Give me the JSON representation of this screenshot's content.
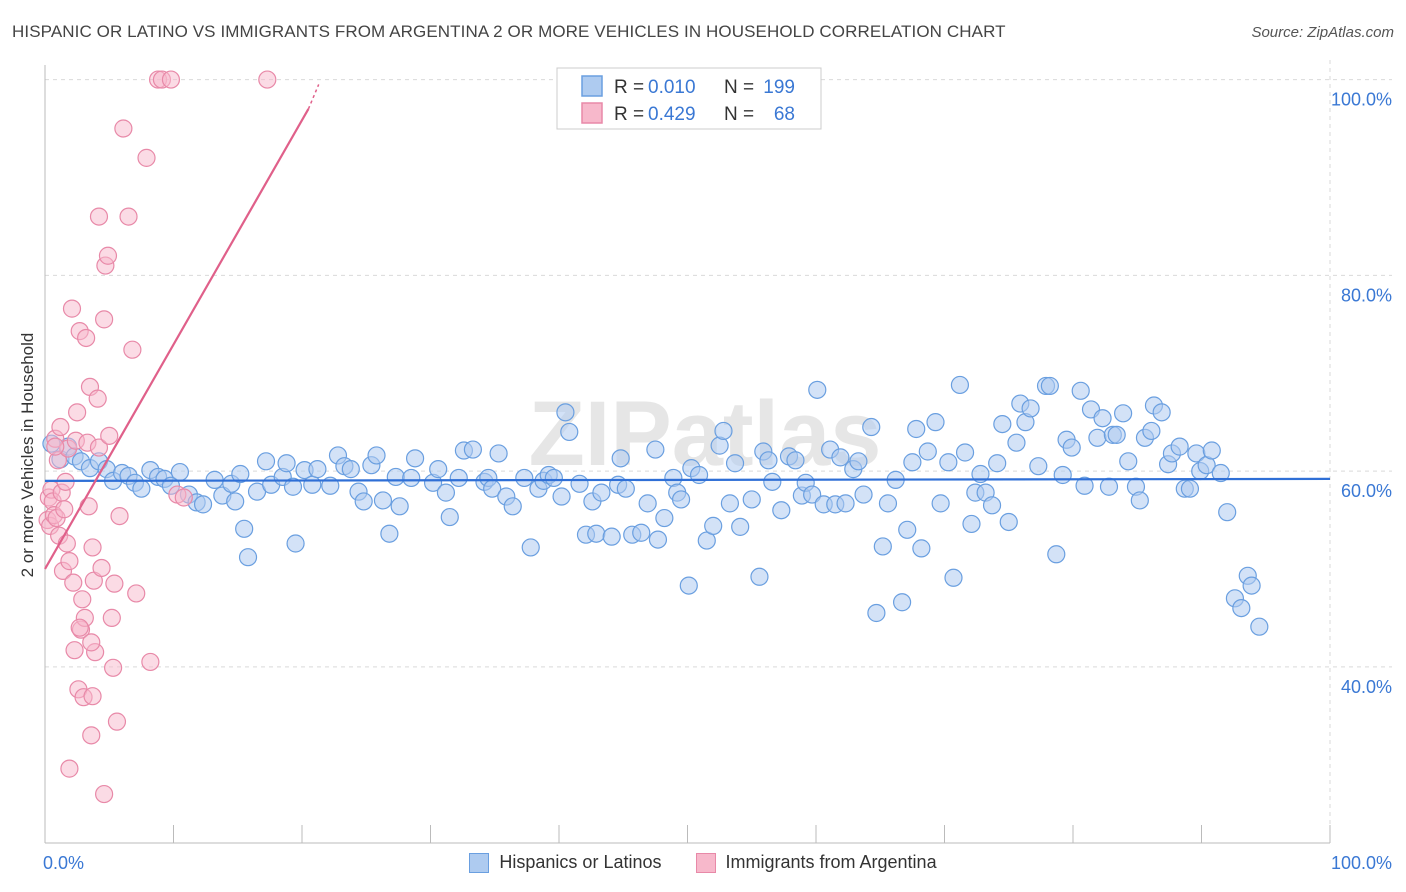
{
  "title": "HISPANIC OR LATINO VS IMMIGRANTS FROM ARGENTINA 2 OR MORE VEHICLES IN HOUSEHOLD CORRELATION CHART",
  "source": "Source: ZipAtlas.com",
  "watermark": "ZIPatlas",
  "legend_top": [
    {
      "r_label": "R =",
      "r_value": "0.010",
      "n_label": "N =",
      "n_value": "199"
    },
    {
      "r_label": "R =",
      "r_value": "0.429",
      "n_label": "N =",
      "n_value": "68"
    }
  ],
  "legend_bottom": [
    {
      "label": "Hispanics or Latinos"
    },
    {
      "label": "Immigrants from Argentina"
    }
  ],
  "colors": {
    "blue_fill": "#aecbf0",
    "blue_stroke": "#6a9fe0",
    "blue_line": "#2f6fd6",
    "pink_fill": "#f7b8cb",
    "pink_stroke": "#e889a8",
    "pink_line": "#e0608a",
    "axis_text": "#3a78d4",
    "grid": "#d9d9d9"
  },
  "chart_data": {
    "type": "scatter",
    "title": "HISPANIC OR LATINO VS IMMIGRANTS FROM ARGENTINA 2 OR MORE VEHICLES IN HOUSEHOLD CORRELATION CHART",
    "xlabel": "",
    "ylabel": "2 or more Vehicles in Household",
    "xlim": [
      0,
      100
    ],
    "ylim": [
      22,
      102
    ],
    "x_tick_labels": [
      "0.0%",
      "100.0%"
    ],
    "y_ticks": [
      40,
      60,
      80,
      100
    ],
    "y_tick_labels": [
      "40.0%",
      "60.0%",
      "80.0%",
      "100.0%"
    ],
    "grid": true,
    "series": [
      {
        "name": "Hispanics or Latinos",
        "R": 0.01,
        "N": 199,
        "trend": {
          "x": [
            0,
            100
          ],
          "y": [
            59.0,
            59.2
          ]
        },
        "points": [
          [
            0.5,
            62.8
          ],
          [
            1.2,
            61.2
          ],
          [
            1.8,
            62.5
          ],
          [
            2.3,
            61.5
          ],
          [
            2.8,
            61.0
          ],
          [
            3.5,
            60.3
          ],
          [
            4.2,
            61.0
          ],
          [
            4.8,
            60.2
          ],
          [
            5.3,
            59.0
          ],
          [
            6.0,
            59.8
          ],
          [
            6.5,
            59.5
          ],
          [
            7.0,
            58.8
          ],
          [
            7.5,
            58.2
          ],
          [
            8.2,
            60.1
          ],
          [
            8.8,
            59.4
          ],
          [
            9.3,
            59.2
          ],
          [
            9.8,
            58.5
          ],
          [
            10.5,
            59.9
          ],
          [
            11.2,
            57.6
          ],
          [
            11.8,
            56.8
          ],
          [
            12.3,
            56.6
          ],
          [
            13.2,
            59.1
          ],
          [
            13.8,
            57.5
          ],
          [
            14.5,
            58.7
          ],
          [
            14.8,
            56.9
          ],
          [
            15.2,
            59.7
          ],
          [
            15.5,
            54.1
          ],
          [
            15.8,
            51.2
          ],
          [
            16.5,
            57.9
          ],
          [
            17.2,
            61.0
          ],
          [
            17.6,
            58.6
          ],
          [
            18.5,
            59.4
          ],
          [
            18.8,
            60.8
          ],
          [
            19.3,
            58.4
          ],
          [
            19.5,
            52.6
          ],
          [
            20.2,
            60.1
          ],
          [
            20.8,
            58.6
          ],
          [
            21.2,
            60.2
          ],
          [
            22.2,
            58.5
          ],
          [
            22.8,
            61.6
          ],
          [
            23.3,
            60.5
          ],
          [
            23.8,
            60.2
          ],
          [
            24.4,
            57.9
          ],
          [
            24.8,
            56.9
          ],
          [
            25.4,
            60.6
          ],
          [
            25.8,
            61.6
          ],
          [
            26.3,
            57.0
          ],
          [
            26.8,
            53.6
          ],
          [
            27.3,
            59.4
          ],
          [
            27.6,
            56.4
          ],
          [
            28.5,
            59.3
          ],
          [
            28.8,
            61.3
          ],
          [
            30.2,
            58.8
          ],
          [
            30.6,
            60.2
          ],
          [
            31.2,
            57.8
          ],
          [
            31.5,
            55.3
          ],
          [
            32.2,
            59.3
          ],
          [
            32.6,
            62.1
          ],
          [
            33.3,
            62.2
          ],
          [
            34.2,
            58.9
          ],
          [
            34.5,
            59.3
          ],
          [
            34.8,
            58.2
          ],
          [
            35.3,
            61.8
          ],
          [
            35.9,
            57.4
          ],
          [
            36.4,
            56.4
          ],
          [
            37.3,
            59.3
          ],
          [
            37.8,
            52.2
          ],
          [
            38.4,
            58.2
          ],
          [
            38.8,
            59.0
          ],
          [
            39.2,
            59.6
          ],
          [
            39.6,
            59.3
          ],
          [
            40.2,
            57.4
          ],
          [
            40.5,
            66.0
          ],
          [
            40.8,
            64.0
          ],
          [
            41.6,
            58.7
          ],
          [
            42.1,
            53.5
          ],
          [
            42.6,
            56.9
          ],
          [
            42.9,
            53.6
          ],
          [
            43.3,
            57.8
          ],
          [
            44.1,
            53.3
          ],
          [
            44.6,
            58.6
          ],
          [
            44.8,
            61.3
          ],
          [
            45.2,
            58.2
          ],
          [
            45.7,
            53.5
          ],
          [
            46.4,
            53.7
          ],
          [
            46.9,
            56.7
          ],
          [
            47.5,
            62.2
          ],
          [
            47.7,
            53.0
          ],
          [
            48.2,
            55.2
          ],
          [
            48.9,
            59.3
          ],
          [
            49.2,
            57.8
          ],
          [
            49.5,
            57.1
          ],
          [
            50.1,
            48.3
          ],
          [
            50.3,
            60.3
          ],
          [
            50.9,
            59.6
          ],
          [
            51.5,
            52.9
          ],
          [
            52.0,
            54.4
          ],
          [
            52.5,
            62.6
          ],
          [
            52.8,
            64.1
          ],
          [
            53.3,
            56.7
          ],
          [
            53.7,
            60.8
          ],
          [
            54.1,
            54.3
          ],
          [
            55.0,
            57.1
          ],
          [
            55.6,
            49.2
          ],
          [
            55.9,
            62.0
          ],
          [
            56.3,
            61.1
          ],
          [
            56.6,
            58.9
          ],
          [
            57.3,
            56.0
          ],
          [
            57.9,
            61.5
          ],
          [
            58.4,
            61.1
          ],
          [
            58.9,
            57.5
          ],
          [
            59.2,
            58.8
          ],
          [
            59.7,
            57.6
          ],
          [
            60.1,
            68.3
          ],
          [
            60.6,
            56.6
          ],
          [
            61.1,
            62.2
          ],
          [
            61.5,
            56.6
          ],
          [
            61.9,
            61.4
          ],
          [
            62.3,
            56.7
          ],
          [
            62.9,
            60.2
          ],
          [
            63.3,
            61.0
          ],
          [
            63.7,
            57.6
          ],
          [
            64.3,
            64.5
          ],
          [
            64.7,
            45.5
          ],
          [
            65.2,
            52.3
          ],
          [
            65.6,
            56.7
          ],
          [
            66.2,
            59.1
          ],
          [
            66.7,
            46.6
          ],
          [
            67.1,
            54.0
          ],
          [
            67.5,
            60.9
          ],
          [
            67.8,
            64.3
          ],
          [
            68.2,
            52.1
          ],
          [
            68.7,
            62.0
          ],
          [
            69.3,
            65.0
          ],
          [
            69.7,
            56.7
          ],
          [
            70.3,
            60.9
          ],
          [
            70.7,
            49.1
          ],
          [
            71.2,
            68.8
          ],
          [
            71.6,
            61.9
          ],
          [
            72.1,
            54.6
          ],
          [
            72.4,
            57.8
          ],
          [
            72.8,
            59.7
          ],
          [
            73.2,
            57.8
          ],
          [
            73.7,
            56.5
          ],
          [
            74.1,
            60.8
          ],
          [
            74.5,
            64.8
          ],
          [
            75.0,
            54.8
          ],
          [
            75.6,
            62.9
          ],
          [
            75.9,
            66.9
          ],
          [
            76.3,
            65.0
          ],
          [
            76.7,
            66.4
          ],
          [
            77.3,
            60.5
          ],
          [
            77.9,
            68.7
          ],
          [
            78.2,
            68.7
          ],
          [
            78.7,
            51.5
          ],
          [
            79.2,
            59.6
          ],
          [
            79.5,
            63.2
          ],
          [
            79.9,
            62.4
          ],
          [
            80.6,
            68.2
          ],
          [
            80.9,
            58.5
          ],
          [
            81.4,
            66.3
          ],
          [
            81.9,
            63.4
          ],
          [
            82.3,
            65.4
          ],
          [
            82.8,
            58.4
          ],
          [
            83.1,
            63.7
          ],
          [
            83.4,
            63.7
          ],
          [
            83.9,
            65.9
          ],
          [
            84.3,
            61.0
          ],
          [
            84.9,
            58.4
          ],
          [
            85.2,
            57.0
          ],
          [
            85.6,
            63.4
          ],
          [
            86.1,
            64.1
          ],
          [
            86.3,
            66.7
          ],
          [
            86.9,
            66.0
          ],
          [
            87.4,
            60.7
          ],
          [
            87.7,
            61.8
          ],
          [
            88.3,
            62.5
          ],
          [
            88.7,
            58.2
          ],
          [
            89.1,
            58.2
          ],
          [
            89.6,
            61.8
          ],
          [
            89.9,
            60.0
          ],
          [
            90.4,
            60.6
          ],
          [
            90.8,
            62.1
          ],
          [
            91.5,
            59.8
          ],
          [
            92.0,
            55.8
          ],
          [
            92.6,
            47.0
          ],
          [
            93.1,
            46.0
          ],
          [
            93.6,
            49.3
          ],
          [
            93.9,
            48.3
          ],
          [
            94.5,
            44.1
          ]
        ]
      },
      {
        "name": "Immigrants from Argentina",
        "R": 0.429,
        "N": 68,
        "trend": {
          "x": [
            0,
            20.5
          ],
          "y": [
            50,
            97
          ]
        },
        "trend_dashed": {
          "x": [
            20.5,
            21.3
          ],
          "y": [
            97,
            99.5
          ]
        },
        "points": [
          [
            0.2,
            55.0
          ],
          [
            0.3,
            57.3
          ],
          [
            0.4,
            54.4
          ],
          [
            0.5,
            58.1
          ],
          [
            0.6,
            56.9
          ],
          [
            0.7,
            55.5
          ],
          [
            0.8,
            63.3
          ],
          [
            0.9,
            55.2
          ],
          [
            1.0,
            61.1
          ],
          [
            1.1,
            53.4
          ],
          [
            1.2,
            64.5
          ],
          [
            1.3,
            57.8
          ],
          [
            1.4,
            49.8
          ],
          [
            1.5,
            56.1
          ],
          [
            1.6,
            58.9
          ],
          [
            1.7,
            52.6
          ],
          [
            1.8,
            62.3
          ],
          [
            1.9,
            50.8
          ],
          [
            2.1,
            76.6
          ],
          [
            2.2,
            48.6
          ],
          [
            2.3,
            41.7
          ],
          [
            2.4,
            63.1
          ],
          [
            2.5,
            66.0
          ],
          [
            2.6,
            37.7
          ],
          [
            2.7,
            74.3
          ],
          [
            2.8,
            43.8
          ],
          [
            2.9,
            46.9
          ],
          [
            3.0,
            36.9
          ],
          [
            3.1,
            45.0
          ],
          [
            3.2,
            73.6
          ],
          [
            3.3,
            62.9
          ],
          [
            3.4,
            56.4
          ],
          [
            3.5,
            68.6
          ],
          [
            3.6,
            33.0
          ],
          [
            3.7,
            52.2
          ],
          [
            3.8,
            48.8
          ],
          [
            3.9,
            41.5
          ],
          [
            4.1,
            67.4
          ],
          [
            4.2,
            62.4
          ],
          [
            4.4,
            50.1
          ],
          [
            4.6,
            75.5
          ],
          [
            4.7,
            81.0
          ],
          [
            4.9,
            82.0
          ],
          [
            5.0,
            63.6
          ],
          [
            5.2,
            45.0
          ],
          [
            5.4,
            48.5
          ],
          [
            5.6,
            34.4
          ],
          [
            5.8,
            55.4
          ],
          [
            6.1,
            95.0
          ],
          [
            6.5,
            86.0
          ],
          [
            6.8,
            72.4
          ],
          [
            7.9,
            92.0
          ],
          [
            8.2,
            40.5
          ],
          [
            8.8,
            100.0
          ],
          [
            9.1,
            100.0
          ],
          [
            9.8,
            100.0
          ],
          [
            10.3,
            57.6
          ],
          [
            10.8,
            57.3
          ],
          [
            17.3,
            100.0
          ],
          [
            1.9,
            29.6
          ],
          [
            3.7,
            37.0
          ],
          [
            4.6,
            27.0
          ],
          [
            2.7,
            44.0
          ],
          [
            5.3,
            39.9
          ],
          [
            4.2,
            86.0
          ],
          [
            3.6,
            42.5
          ],
          [
            0.8,
            62.5
          ],
          [
            7.1,
            47.5
          ]
        ]
      }
    ]
  }
}
